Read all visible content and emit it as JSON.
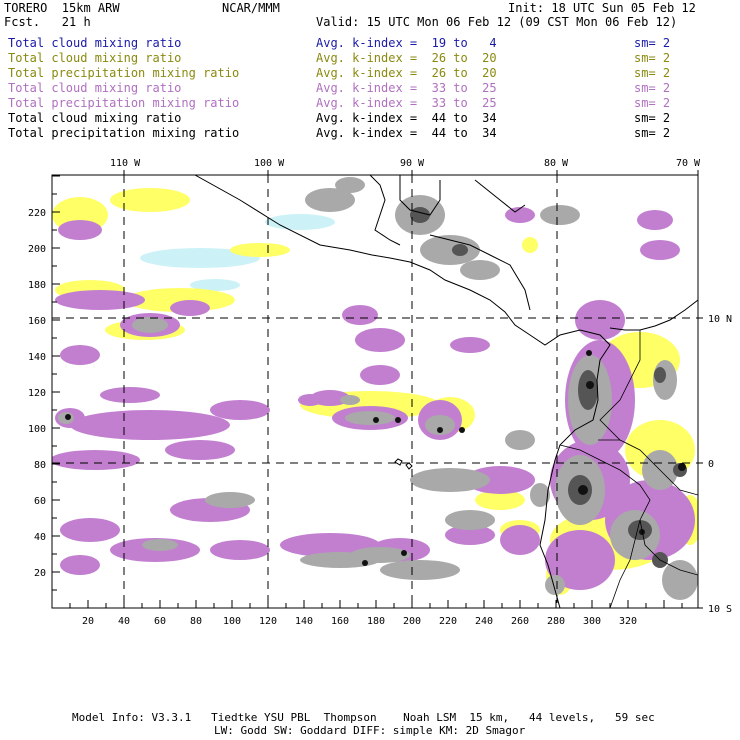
{
  "header": {
    "model": "TORERO  15km ARW",
    "center": "NCAR/MMM",
    "init": "Init: 18 UTC Sun 05 Feb 12",
    "fcst": "Fcst.   21 h",
    "valid": "Valid: 15 UTC Mon 06 Feb 12 (09 CST Mon 06 Feb 12)"
  },
  "legend": [
    {
      "field": "Total cloud mixing ratio",
      "kindex": "Avg. k-index =  19 to   4",
      "sm": "sm= 2",
      "color": "#1a1aa8"
    },
    {
      "field": "Total cloud mixing ratio",
      "kindex": "Avg. k-index =  26 to  20",
      "sm": "sm= 2",
      "color": "#8a8a10"
    },
    {
      "field": "Total precipitation mixing ratio",
      "kindex": "Avg. k-index =  26 to  20",
      "sm": "sm= 2",
      "color": "#8a8a10"
    },
    {
      "field": "Total cloud mixing ratio",
      "kindex": "Avg. k-index =  33 to  25",
      "sm": "sm= 2",
      "color": "#b070c0"
    },
    {
      "field": "Total precipitation mixing ratio",
      "kindex": "Avg. k-index =  33 to  25",
      "sm": "sm= 2",
      "color": "#b070c0"
    },
    {
      "field": "Total cloud mixing ratio",
      "kindex": "Avg. k-index =  44 to  34",
      "sm": "sm= 2",
      "color": "#000000"
    },
    {
      "field": "Total precipitation mixing ratio",
      "kindex": "Avg. k-index =  44 to  34",
      "sm": "sm= 2",
      "color": "#000000"
    }
  ],
  "map": {
    "x_ticks": [
      "20",
      "40",
      "60",
      "80",
      "100",
      "120",
      "140",
      "160",
      "180",
      "200",
      "220",
      "240",
      "260",
      "280",
      "300",
      "320"
    ],
    "y_ticks": [
      "20",
      "40",
      "60",
      "80",
      "100",
      "120",
      "140",
      "160",
      "180",
      "200",
      "220"
    ],
    "lon_labels": [
      "110 W",
      "100 W",
      "90 W",
      "80 W",
      "70 W"
    ],
    "lat_labels": [
      "10 N",
      "0",
      "10 S"
    ],
    "colors": {
      "gray": "#a9a9a9",
      "dark": "#555555",
      "black": "#111111",
      "purple": "#c27fd0",
      "yellow": "#ffff66",
      "cyan": "#ccf2f7"
    }
  },
  "footer": {
    "line1": "Model Info: V3.3.1   Tiedtke YSU PBL  Thompson    Noah LSM  15 km,   44 levels,   59 sec",
    "line2": "LW: Godd SW: Goddard DIFF: simple KM: 2D Smagor"
  }
}
